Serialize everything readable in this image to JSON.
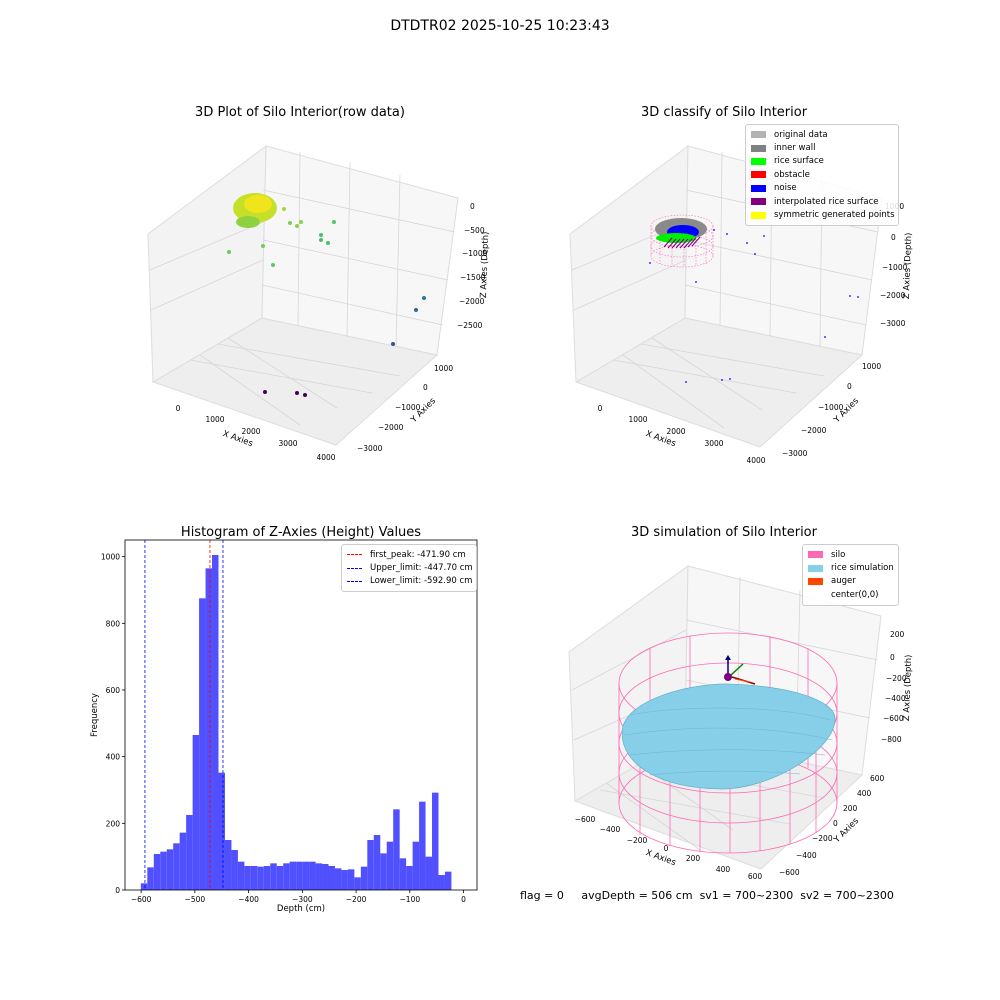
{
  "suptitle": "DTDTR02 2025-10-25 10:23:43",
  "colors": {
    "histogram_bar": "#5050ff",
    "peak_line": "#ff0000",
    "limit_line": "#0000ff",
    "silo": "#ff69b4",
    "rice_simulation": "#87cee8",
    "auger": "#ff4500",
    "pane": "#f2f2f2",
    "grid": "#d5d5d5"
  },
  "chart_data": [
    {
      "type": "scatter3d",
      "title": "3D Plot of Silo Interior(row data)",
      "xlabel": "X Axies",
      "ylabel": "Y Axies",
      "zlabel": "Z Axies (Depth)",
      "x_ticks": [
        "0",
        "1000",
        "2000",
        "3000",
        "4000"
      ],
      "y_ticks": [
        "1000",
        "0",
        "−1000",
        "−2000",
        "−3000"
      ],
      "z_ticks": [
        "0",
        "−500",
        "−1000",
        "−1500",
        "−2000",
        "−2500"
      ],
      "colormap": "viridis"
    },
    {
      "type": "scatter3d",
      "title": "3D classify of Silo Interior",
      "xlabel": "X Axies",
      "ylabel": "Y Axies",
      "zlabel": "Z Axies (Depth)",
      "x_ticks": [
        "0",
        "1000",
        "2000",
        "3000",
        "4000"
      ],
      "y_ticks": [
        "1000",
        "0",
        "−1000",
        "−2000",
        "−3000"
      ],
      "z_ticks": [
        "1000",
        "0",
        "−1000",
        "−2000",
        "−3000"
      ],
      "legend_position": "upper right",
      "legend": [
        {
          "label": "original data",
          "color": "#b3b3b3"
        },
        {
          "label": "inner wall",
          "color": "#808080"
        },
        {
          "label": "rice surface",
          "color": "#00ff00"
        },
        {
          "label": "obstacle",
          "color": "#ff0000"
        },
        {
          "label": "noise",
          "color": "#0000ff"
        },
        {
          "label": "interpolated rice surface",
          "color": "#800080"
        },
        {
          "label": "symmetric generated points",
          "color": "#ffff00"
        }
      ]
    },
    {
      "type": "bar",
      "title": "Histogram of Z-Axies (Height) Values",
      "xlabel": "Depth (cm)",
      "ylabel": "Frequency",
      "xlim": [
        -630,
        25
      ],
      "ylim": [
        0,
        1050
      ],
      "x_ticks": [
        -600,
        -500,
        -400,
        -300,
        -200,
        -100,
        0
      ],
      "y_ticks": [
        0,
        200,
        400,
        600,
        800,
        1000
      ],
      "bins": {
        "start": -600.5,
        "width": 12.04,
        "counts": [
          20,
          68,
          108,
          115,
          122,
          140,
          172,
          225,
          465,
          875,
          965,
          1005,
          352,
          150,
          120,
          85,
          72,
          72,
          70,
          72,
          80,
          72,
          80,
          85,
          85,
          85,
          85,
          80,
          78,
          72,
          65,
          60,
          62,
          38,
          70,
          150,
          165,
          110,
          145,
          242,
          95,
          72,
          145,
          265,
          100,
          292,
          45,
          55
        ]
      },
      "lines": [
        {
          "label": "first_peak: -471.90 cm",
          "x": -471.9,
          "color": "#ff0000"
        },
        {
          "label": "Upper_limit: -447.70 cm",
          "x": -447.7,
          "color": "#0000ff"
        },
        {
          "label": "Lower_limit: -592.90 cm",
          "x": -592.9,
          "color": "#0000ff"
        }
      ],
      "legend_position": "upper right"
    },
    {
      "type": "surface3d",
      "title": "3D simulation of Silo Interior",
      "xlabel": "X Axies",
      "ylabel": "Y Axies",
      "zlabel": "Z Axies (Depth)",
      "x_ticks": [
        "−600",
        "−400",
        "−200",
        "0",
        "200",
        "400",
        "600"
      ],
      "y_ticks": [
        "600",
        "400",
        "200",
        "0",
        "−200",
        "−400",
        "−600"
      ],
      "z_ticks": [
        "200",
        "0",
        "−200",
        "−400",
        "−600",
        "−800"
      ],
      "legend_position": "upper right",
      "legend": [
        {
          "label": "silo",
          "color": "#ff69b4"
        },
        {
          "label": "rice simulation",
          "color": "#87cee8"
        },
        {
          "label": "auger",
          "color": "#ff4500"
        },
        {
          "label": "center(0,0)",
          "color": ""
        }
      ]
    }
  ],
  "footer": {
    "flag": "flag = 0",
    "avg_depth": "avgDepth = 506 cm",
    "sv1": "sv1 = 700~2300",
    "sv2": "sv2 = 700~2300"
  }
}
